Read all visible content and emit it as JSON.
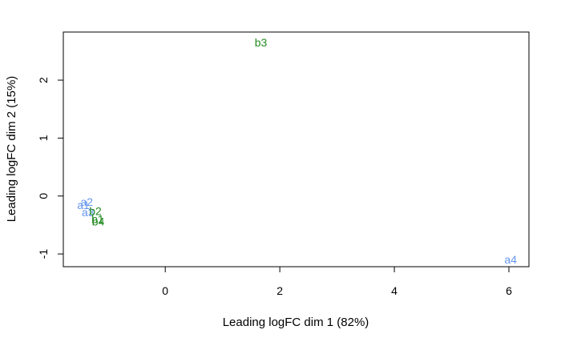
{
  "chart_data": {
    "type": "scatter",
    "xlabel": "Leading logFC dim 1 (82%)",
    "ylabel": "Leading logFC dim 2 (15%)",
    "xlim": [
      -1.78,
      6.35
    ],
    "ylim": [
      -1.22,
      2.83
    ],
    "x_ticks": [
      0,
      2,
      4,
      6
    ],
    "y_ticks": [
      -1,
      0,
      1,
      2
    ],
    "x_tick_labels": [
      "0",
      "2",
      "4",
      "6"
    ],
    "y_tick_labels": [
      "-1",
      "0",
      "1",
      "2"
    ],
    "grid": false,
    "colors": {
      "a": "#6495ED",
      "b": "#228B22"
    },
    "points": [
      {
        "label": "a1",
        "x": -1.43,
        "y": -0.16,
        "group": "a"
      },
      {
        "label": "a2",
        "x": -1.37,
        "y": -0.1,
        "group": "a"
      },
      {
        "label": "a3",
        "x": -1.35,
        "y": -0.28,
        "group": "a"
      },
      {
        "label": "a4",
        "x": 6.03,
        "y": -1.1,
        "group": "a"
      },
      {
        "label": "b1",
        "x": -1.18,
        "y": -0.4,
        "group": "b"
      },
      {
        "label": "b2",
        "x": -1.22,
        "y": -0.26,
        "group": "b"
      },
      {
        "label": "b3",
        "x": 1.67,
        "y": 2.65,
        "group": "b"
      },
      {
        "label": "b4",
        "x": -1.17,
        "y": -0.44,
        "group": "b"
      }
    ]
  }
}
